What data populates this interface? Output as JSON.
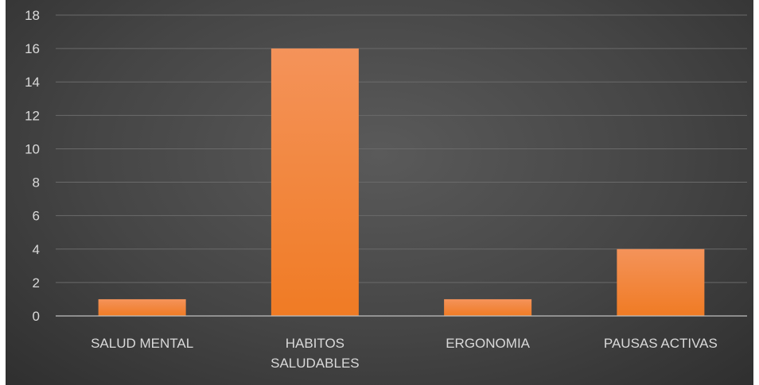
{
  "chart_data": {
    "type": "bar",
    "categories": [
      "SALUD MENTAL",
      "HABITOS SALUDABLES",
      "ERGONOMIA",
      "PAUSAS ACTIVAS"
    ],
    "category_lines": [
      [
        "SALUD MENTAL"
      ],
      [
        "HABITOS",
        "SALUDABLES"
      ],
      [
        "ERGONOMIA"
      ],
      [
        "PAUSAS ACTIVAS"
      ]
    ],
    "values": [
      1,
      16,
      1,
      4
    ],
    "title": "",
    "xlabel": "",
    "ylabel": "",
    "ylim": [
      0,
      18
    ],
    "yticks": [
      0,
      2,
      4,
      6,
      8,
      10,
      12,
      14,
      16,
      18
    ],
    "grid": true,
    "legend": "none",
    "bar_color": "#F07B24",
    "bar_color_light": "#F4935A",
    "background_color": "#454545",
    "text_color": "#D9D9D9"
  }
}
